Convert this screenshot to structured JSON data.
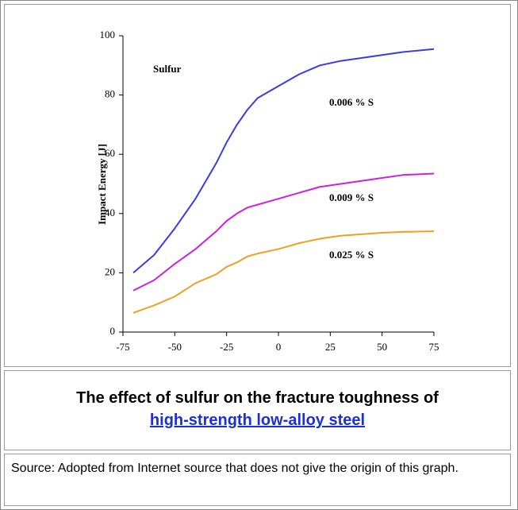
{
  "chart_data": {
    "type": "line",
    "annotation": "Sulfur",
    "ylabel": "Impact Energy [J]",
    "x": [
      -70,
      -60,
      -50,
      -40,
      -30,
      -25,
      -20,
      -15,
      -10,
      0,
      10,
      20,
      30,
      40,
      50,
      60,
      75
    ],
    "series": [
      {
        "name": "0.006 % S",
        "color": "#3b3be6",
        "values": [
          20,
          26,
          35,
          45,
          57,
          64,
          70,
          75,
          79,
          83,
          87,
          90,
          91.5,
          92.5,
          93.5,
          94.5,
          95.5
        ]
      },
      {
        "name": "0.009 % S",
        "color": "#cc22e0",
        "values": [
          14,
          17.5,
          23,
          28,
          34,
          37.5,
          40,
          42,
          43,
          45,
          47,
          49,
          50,
          51,
          52,
          53,
          53.5
        ]
      },
      {
        "name": "0.025 % S",
        "color": "#f0a020",
        "values": [
          6.5,
          9,
          12,
          16.5,
          19.5,
          22,
          23.5,
          25.5,
          26.5,
          28,
          30,
          31.5,
          32.5,
          33,
          33.5,
          33.8,
          34
        ]
      }
    ],
    "xlim": [
      -75,
      75
    ],
    "xticks": [
      -75,
      -50,
      -25,
      0,
      25,
      50,
      75
    ],
    "ylim": [
      0,
      100
    ],
    "yticks": [
      0,
      20,
      40,
      60,
      80,
      100
    ]
  },
  "caption": {
    "text": "The effect of sulfur on the fracture toughness of",
    "link": "high-strength low-alloy steel"
  },
  "source": "Source: Adopted from Internet source that does not give the origin of this graph."
}
